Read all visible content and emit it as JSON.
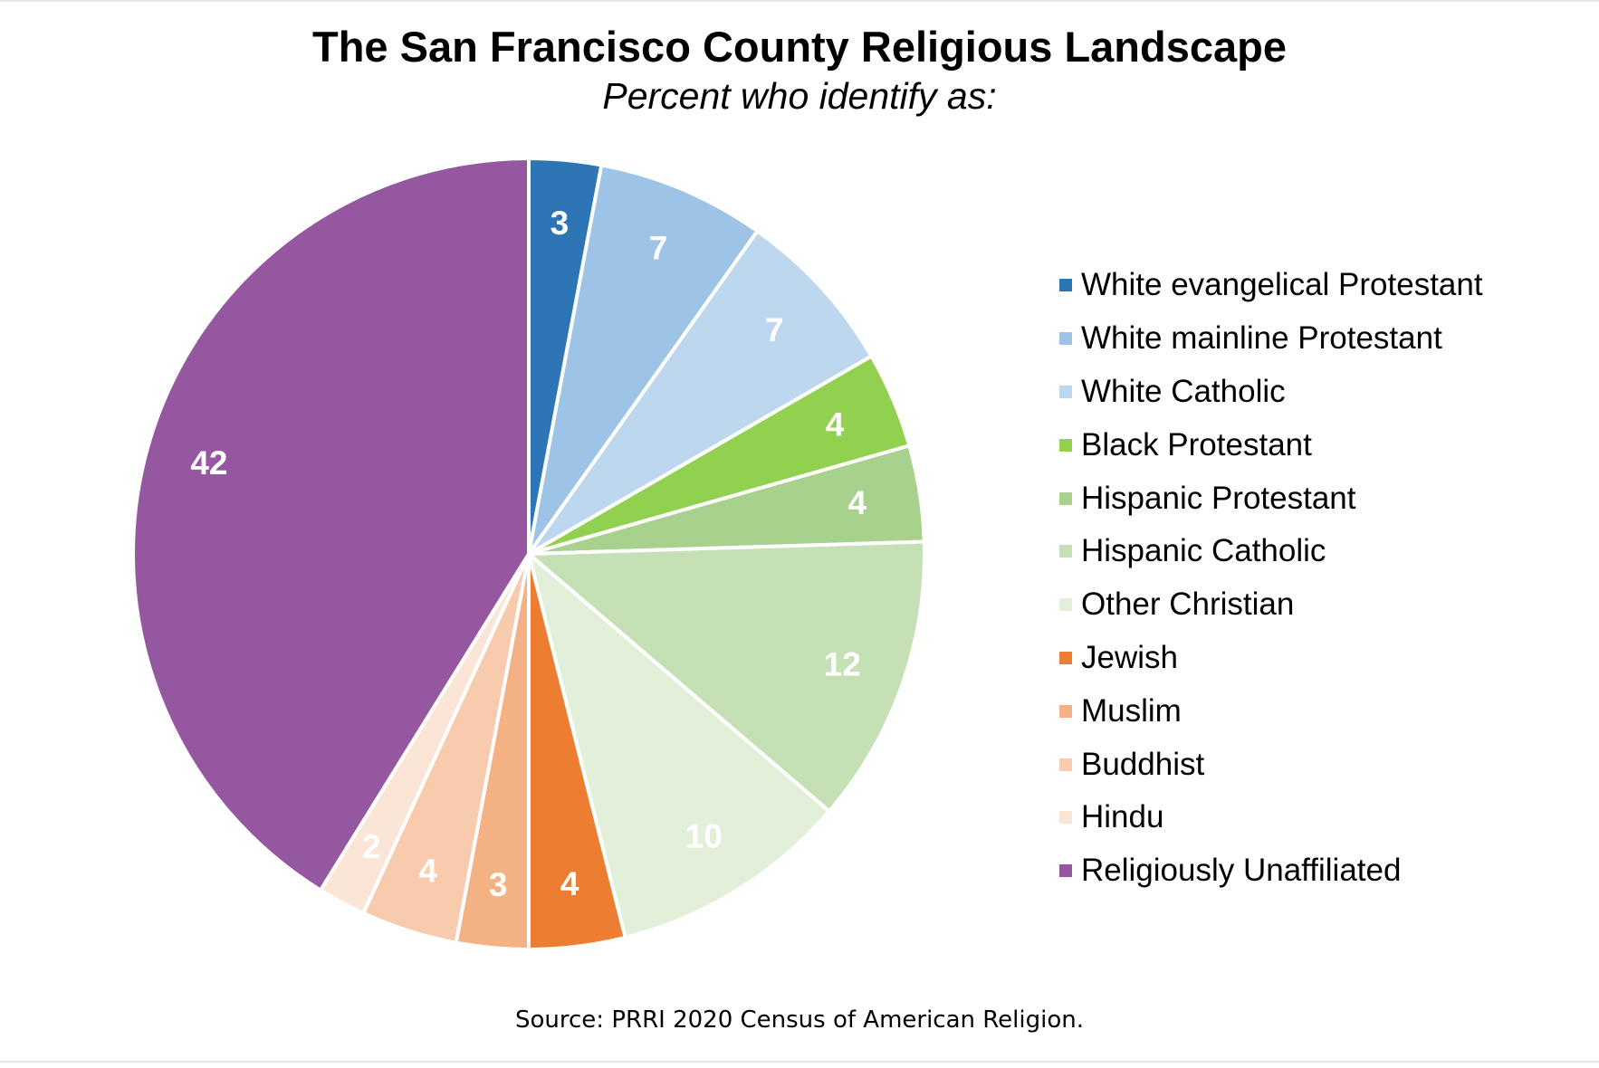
{
  "chart_data": {
    "type": "pie",
    "title": "The San Francisco County Religious Landscape",
    "subtitle": "Percent who identify as:",
    "categories": [
      "White evangelical Protestant",
      "White mainline Protestant",
      "White Catholic",
      "Black Protestant",
      "Hispanic Protestant",
      "Hispanic Catholic",
      "Other Christian",
      "Jewish",
      "Muslim",
      "Buddhist",
      "Hindu",
      "Religiously Unaffiliated"
    ],
    "values": [
      3,
      7,
      7,
      4,
      4,
      12,
      10,
      4,
      3,
      4,
      2,
      42
    ],
    "colors": [
      "#2E75B6",
      "#9DC3E6",
      "#BDD7EE",
      "#92D050",
      "#A9D18E",
      "#C5E0B4",
      "#E2F0D9",
      "#ED7D31",
      "#F4B183",
      "#F8CBAD",
      "#FBE5D6",
      "#9558A0"
    ],
    "data_labels": [
      "3",
      "7",
      "7",
      "4",
      "4",
      "12",
      "10",
      "4",
      "3",
      "4",
      "2",
      "42"
    ],
    "legend_position": "right",
    "source": "Source: PRRI 2020 Census of American Religion."
  }
}
